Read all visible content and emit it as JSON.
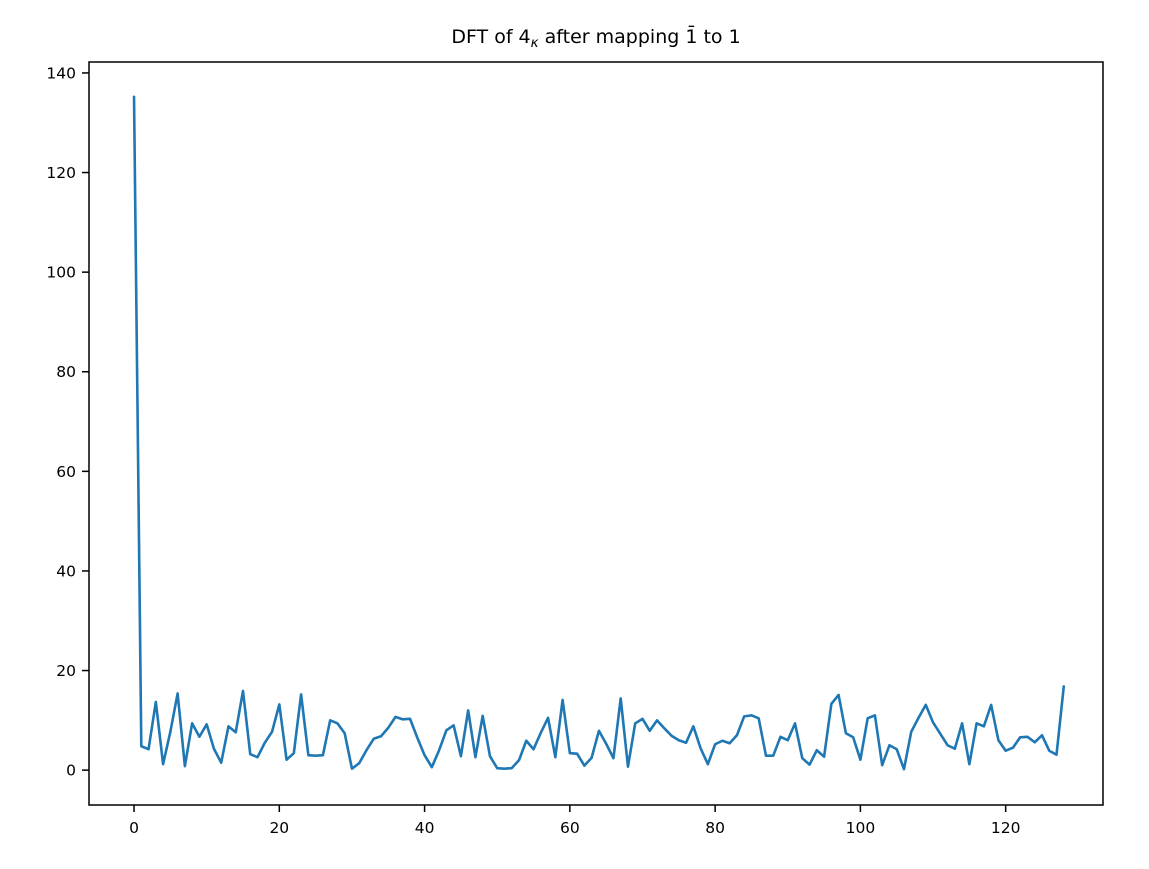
{
  "figure": {
    "background": "#ffffff",
    "title": {
      "prefix": "DFT of 4",
      "subscript": "κ",
      "suffix": " after mapping 1̄ to 1"
    }
  },
  "chart_data": {
    "type": "line",
    "title": "DFT of 4_κ after mapping 1̄ to 1",
    "xlabel": "",
    "ylabel": "",
    "legend": null,
    "grid": false,
    "line_color": "#1f77b4",
    "line_width": 2.6,
    "spine_color": "#000000",
    "x_start": 0,
    "x_step": 1,
    "xlim": [
      -6.2,
      133.4
    ],
    "ylim": [
      -7.0,
      142.2
    ],
    "xticks": [
      0,
      20,
      40,
      60,
      80,
      100,
      120
    ],
    "yticks": [
      0,
      20,
      40,
      60,
      80,
      100,
      120,
      140
    ],
    "values": [
      135.2,
      4.8,
      4.2,
      13.7,
      1.2,
      7.7,
      15.4,
      0.8,
      9.4,
      6.7,
      9.2,
      4.3,
      1.5,
      8.8,
      7.6,
      15.9,
      3.2,
      2.6,
      5.5,
      7.7,
      13.2,
      2.1,
      3.4,
      15.2,
      3.0,
      2.9,
      3.0,
      10.0,
      9.4,
      7.4,
      0.3,
      1.4,
      4.0,
      6.3,
      6.8,
      8.5,
      10.7,
      10.2,
      10.3,
      6.5,
      3.0,
      0.6,
      4.0,
      8.0,
      9.0,
      2.8,
      12.0,
      2.6,
      10.9,
      2.8,
      0.4,
      0.3,
      0.4,
      2.0,
      5.9,
      4.2,
      7.5,
      10.5,
      2.6,
      14.1,
      3.4,
      3.3,
      0.9,
      2.5,
      7.9,
      5.3,
      2.4,
      14.4,
      0.7,
      9.4,
      10.3,
      7.9,
      10.0,
      8.4,
      6.9,
      6.0,
      5.5,
      8.8,
      4.4,
      1.2,
      5.2,
      5.9,
      5.4,
      7.0,
      10.8,
      11.0,
      10.4,
      2.9,
      2.9,
      6.7,
      6.0,
      9.4,
      2.4,
      1.1,
      4.0,
      2.7,
      13.3,
      15.1,
      7.4,
      6.6,
      2.1,
      10.4,
      11.0,
      1.0,
      5.0,
      4.2,
      0.2,
      7.7,
      10.5,
      13.1,
      9.6,
      7.3,
      5.0,
      4.3,
      9.4,
      1.2,
      9.4,
      8.8,
      13.1,
      6.0,
      3.9,
      4.5,
      6.6,
      6.7,
      5.6,
      7.0,
      3.9,
      3.1,
      16.8
    ]
  }
}
